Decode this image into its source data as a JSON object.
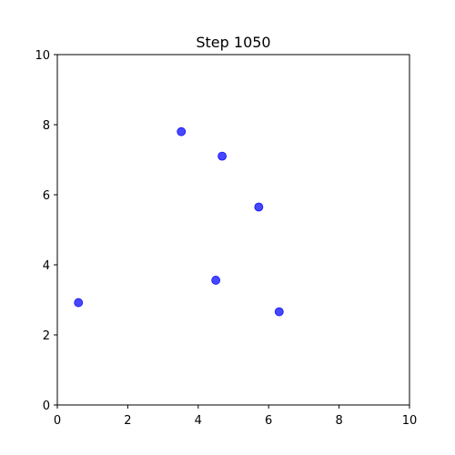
{
  "chart_data": {
    "type": "scatter",
    "title": "Step 1050",
    "xlabel": "",
    "ylabel": "",
    "xlim": [
      0,
      10
    ],
    "ylim": [
      0,
      10
    ],
    "x_ticks": [
      "0",
      "2",
      "4",
      "6",
      "8",
      "10"
    ],
    "y_ticks": [
      "0",
      "2",
      "4",
      "6",
      "8",
      "10"
    ],
    "grid": false,
    "point_color": "#0000ff",
    "point_opacity": 0.72,
    "series": [
      {
        "points": [
          {
            "x": 3.52,
            "y": 7.8
          },
          {
            "x": 4.68,
            "y": 7.1
          },
          {
            "x": 5.72,
            "y": 5.65
          },
          {
            "x": 4.5,
            "y": 3.56
          },
          {
            "x": 0.6,
            "y": 2.92
          },
          {
            "x": 6.3,
            "y": 2.66
          }
        ]
      }
    ]
  }
}
